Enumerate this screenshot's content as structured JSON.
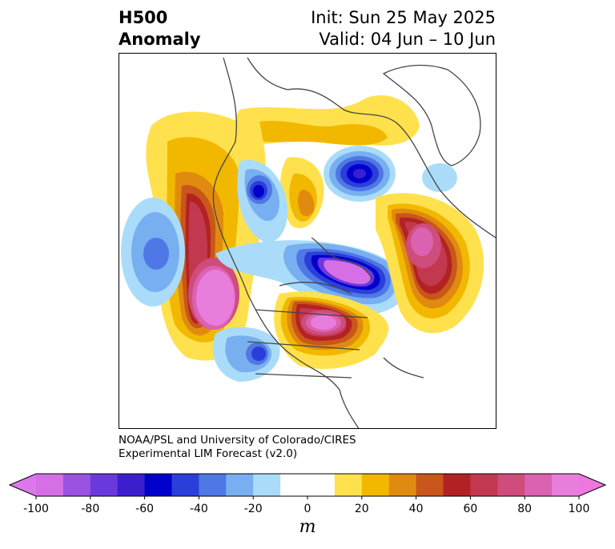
{
  "header": {
    "title_line1": "H500",
    "title_line2": "Anomaly",
    "init_text": "Init: Sun 25 May 2025",
    "valid_text": "Valid: 04 Jun – 10 Jun"
  },
  "credit": {
    "line1": "NOAA/PSL and University of Colorado/CIRES",
    "line2": "Experimental LIM Forecast (v2.0)"
  },
  "colorbar": {
    "unit": "m",
    "ticks": [
      "-100",
      "-80",
      "-60",
      "-40",
      "-20",
      "0",
      "20",
      "40",
      "60",
      "80",
      "100"
    ],
    "colors": [
      "#d66fe6",
      "#9b52e0",
      "#6a38dd",
      "#3b1fcf",
      "#0000cc",
      "#2a3fd9",
      "#4f77e6",
      "#78aff0",
      "#aadcfa",
      "#ffffff",
      "#ffffff",
      "#ffe14d",
      "#f2b800",
      "#e08b10",
      "#c9561a",
      "#b22222",
      "#c2384f",
      "#cf4d7d",
      "#db62b0",
      "#e97ddc"
    ],
    "under_color": "#dd77ee",
    "over_color": "#ee77dd"
  },
  "map": {
    "description_colors": {
      "positive_light": "#ffe14d",
      "negative_light": "#aadcfa",
      "coast": "#444444"
    },
    "anomaly_centers": [
      {
        "id": "ne-pacific-ridge",
        "sign": "positive",
        "peak": 100
      },
      {
        "id": "hudson-bay-trough",
        "sign": "negative",
        "peak": -100
      },
      {
        "id": "n-atlantic-ridge",
        "sign": "positive",
        "peak": 80
      },
      {
        "id": "central-pacific-low",
        "sign": "negative",
        "peak": -40
      },
      {
        "id": "central-us-ridge",
        "sign": "positive",
        "peak": 100
      },
      {
        "id": "greenland-sea-low",
        "sign": "negative",
        "peak": -60
      },
      {
        "id": "sw-us-low",
        "sign": "negative",
        "peak": -60
      },
      {
        "id": "alaska-yukon-low",
        "sign": "negative",
        "peak": -60
      },
      {
        "id": "baffin-ridge",
        "sign": "positive",
        "peak": 40
      }
    ]
  }
}
